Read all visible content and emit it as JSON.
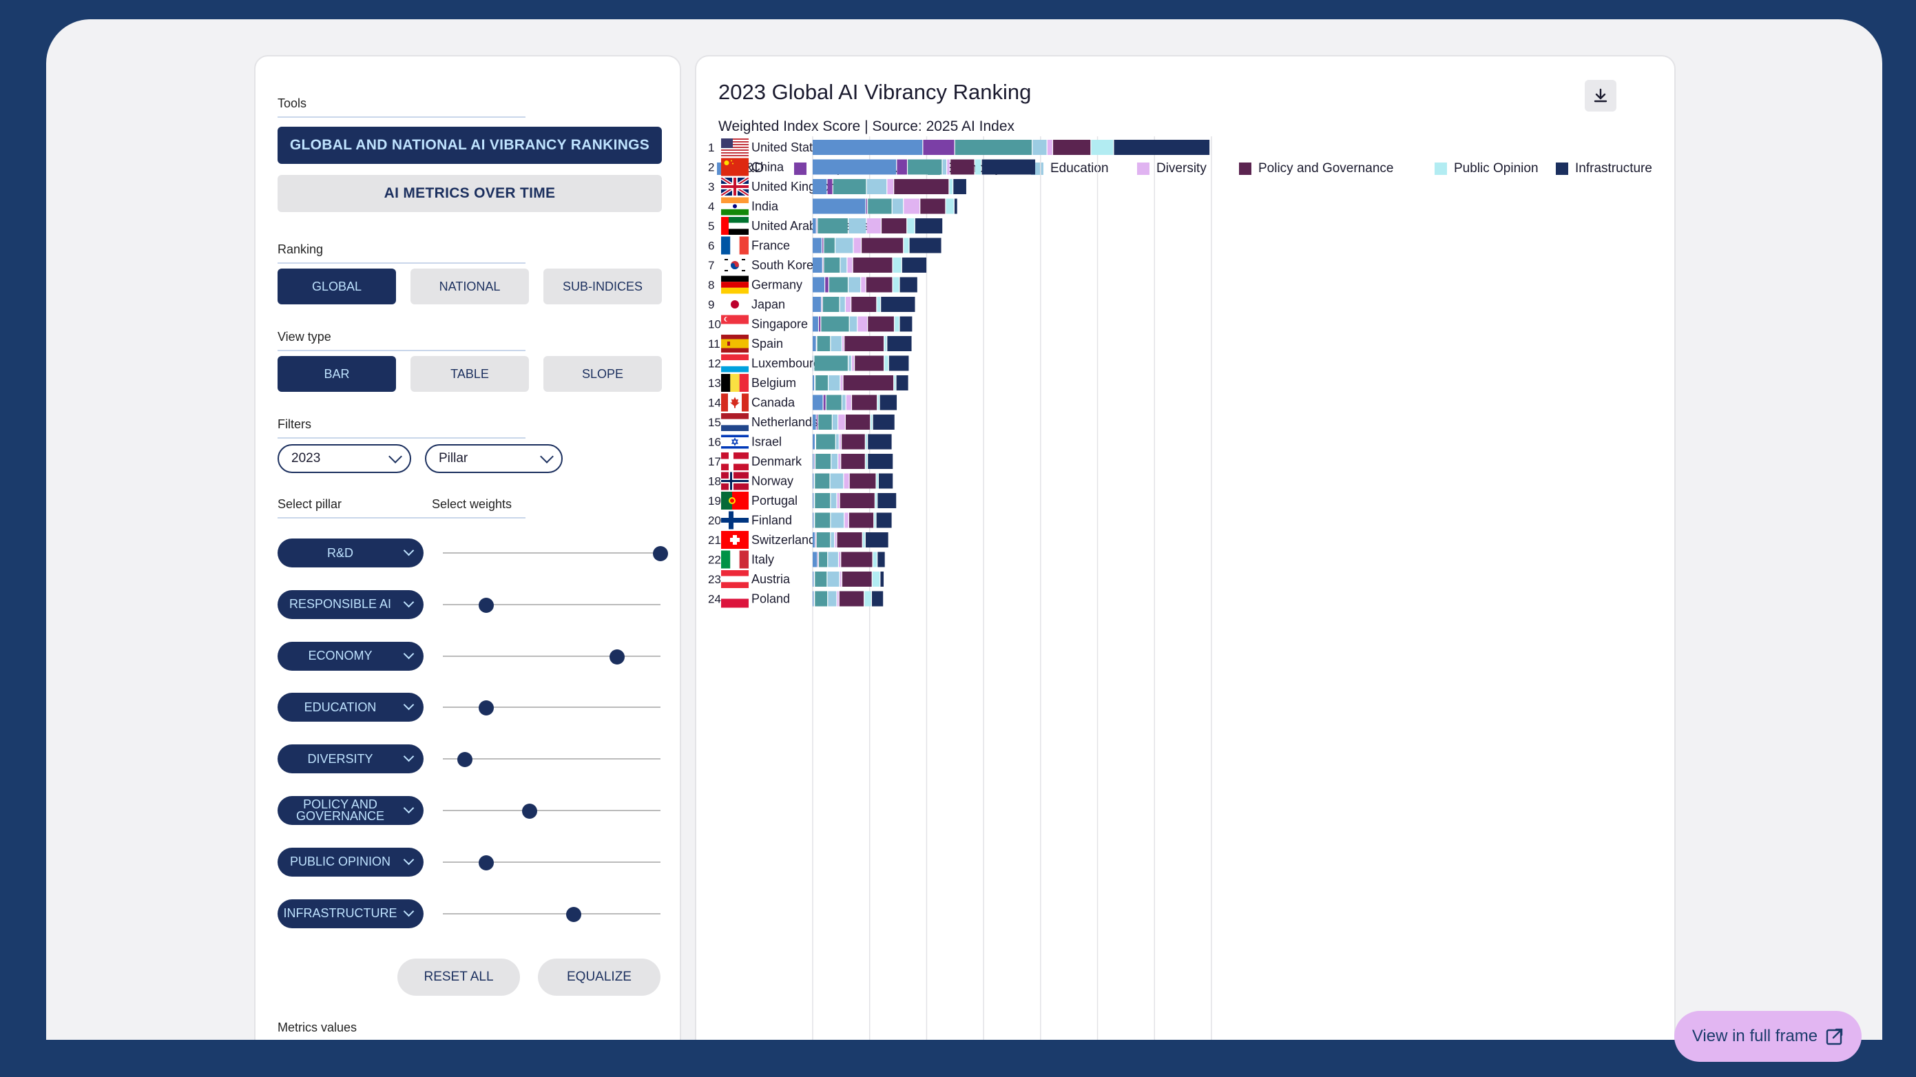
{
  "panel": {
    "tools_label": "Tools",
    "tools": [
      "GLOBAL AND NATIONAL AI VIBRANCY RANKINGS",
      "AI METRICS OVER TIME"
    ],
    "ranking_label": "Ranking",
    "ranking": [
      "GLOBAL",
      "NATIONAL",
      "SUB-INDICES"
    ],
    "viewtype_label": "View type",
    "viewtype": [
      "BAR",
      "TABLE",
      "SLOPE"
    ],
    "filters_label": "Filters",
    "year": "2023",
    "mode": "Pillar",
    "select_pillar_label": "Select pillar",
    "select_weights_label": "Select weights",
    "pillars": [
      {
        "label": "R&D",
        "weight": 1.0
      },
      {
        "label": "RESPONSIBLE AI",
        "weight": 0.2
      },
      {
        "label": "ECONOMY",
        "weight": 0.8
      },
      {
        "label": "EDUCATION",
        "weight": 0.2
      },
      {
        "label": "DIVERSITY",
        "weight": 0.1
      },
      {
        "label": "POLICY AND GOVERNANCE",
        "weight": 0.4
      },
      {
        "label": "PUBLIC OPINION",
        "weight": 0.2
      },
      {
        "label": "INFRASTRUCTURE",
        "weight": 0.6
      }
    ],
    "reset_label": "RESET ALL",
    "equalize_label": "EQUALIZE",
    "metrics_label": "Metrics values"
  },
  "full_frame_label": "View in full frame",
  "chart_data": {
    "type": "bar",
    "stacked": true,
    "orientation": "horizontal",
    "title": "2023 Global AI Vibrancy Ranking",
    "subtitle": "Weighted Index Score | Source: 2025 AI Index",
    "legend_position": "top",
    "grid": true,
    "series": [
      {
        "name": "R&D",
        "color": "#5b8fcf"
      },
      {
        "name": "Responsible AI",
        "color": "#7b3fa6"
      },
      {
        "name": "Economy",
        "color": "#4e9a9e"
      },
      {
        "name": "Education",
        "color": "#9ccce3"
      },
      {
        "name": "Diversity",
        "color": "#e0b3f1"
      },
      {
        "name": "Policy and Governance",
        "color": "#5b2450"
      },
      {
        "name": "Public Opinion",
        "color": "#b2ecf2"
      },
      {
        "name": "Infrastructure",
        "color": "#1b2f5e"
      }
    ],
    "xlim": [
      0,
      70
    ],
    "rows": [
      {
        "rank": "1",
        "country": "United States",
        "flag": "us",
        "values": [
          19.4,
          5.6,
          13.6,
          2.6,
          1.0,
          6.7,
          4.0,
          16.9
        ]
      },
      {
        "rank": "2",
        "country": "China",
        "flag": "cn",
        "values": [
          14.8,
          1.9,
          6.1,
          0.8,
          0.6,
          4.3,
          1.2,
          9.5
        ]
      },
      {
        "rank": "3",
        "country": "United Kingdom",
        "flag": "uk",
        "values": [
          2.6,
          1.0,
          5.9,
          3.6,
          1.2,
          9.7,
          0.7,
          2.4
        ]
      },
      {
        "rank": "4",
        "country": "India",
        "flag": "in",
        "values": [
          9.4,
          0.3,
          4.3,
          2.0,
          2.9,
          4.5,
          1.5,
          0.6
        ]
      },
      {
        "rank": "5",
        "country": "United Arab Emirates",
        "flag": "ae",
        "values": [
          0.7,
          0.2,
          5.4,
          3.2,
          2.6,
          4.5,
          1.4,
          4.9
        ]
      },
      {
        "rank": "6",
        "country": "France",
        "flag": "fr",
        "values": [
          1.7,
          0.3,
          2.0,
          3.2,
          1.4,
          7.4,
          1.0,
          5.7
        ]
      },
      {
        "rank": "7",
        "country": "South Korea",
        "flag": "kr",
        "values": [
          1.8,
          0.2,
          2.9,
          1.2,
          1.0,
          7.0,
          1.6,
          4.4
        ]
      },
      {
        "rank": "8",
        "country": "Germany",
        "flag": "de",
        "values": [
          2.2,
          0.7,
          3.4,
          2.2,
          0.9,
          4.7,
          1.2,
          3.2
        ]
      },
      {
        "rank": "9",
        "country": "Japan",
        "flag": "jp",
        "values": [
          1.6,
          0.2,
          3.0,
          1.0,
          1.0,
          4.5,
          0.7,
          6.1
        ]
      },
      {
        "rank": "10",
        "country": "Singapore",
        "flag": "sg",
        "values": [
          1.1,
          0.4,
          5.0,
          1.4,
          1.8,
          4.7,
          0.9,
          2.3
        ]
      },
      {
        "rank": "11",
        "country": "Spain",
        "flag": "es",
        "values": [
          0.7,
          0.1,
          2.4,
          2.0,
          0.4,
          7.0,
          0.5,
          4.4
        ]
      },
      {
        "rank": "12",
        "country": "Luxembourg",
        "flag": "lu",
        "values": [
          0.2,
          0.1,
          6.0,
          0.6,
          0.5,
          5.2,
          0.8,
          3.6
        ]
      },
      {
        "rank": "13",
        "country": "Belgium",
        "flag": "be",
        "values": [
          0.4,
          0.1,
          2.3,
          2.1,
          0.5,
          8.9,
          0.4,
          2.2
        ]
      },
      {
        "rank": "14",
        "country": "Canada",
        "flag": "ca",
        "values": [
          1.9,
          0.5,
          2.8,
          0.7,
          1.0,
          4.5,
          0.4,
          3.1
        ]
      },
      {
        "rank": "15",
        "country": "Netherlands",
        "flag": "nl",
        "values": [
          0.7,
          0.3,
          2.5,
          1.0,
          1.3,
          4.4,
          0.4,
          3.9
        ]
      },
      {
        "rank": "16",
        "country": "Israel",
        "flag": "il",
        "values": [
          0.5,
          0.1,
          3.5,
          0.6,
          0.4,
          4.2,
          0.4,
          4.3
        ]
      },
      {
        "rank": "17",
        "country": "Denmark",
        "flag": "dk",
        "values": [
          0.3,
          0.2,
          2.8,
          1.2,
          0.5,
          4.3,
          0.4,
          4.5
        ]
      },
      {
        "rank": "18",
        "country": "Norway",
        "flag": "no",
        "values": [
          0.3,
          0.1,
          2.7,
          2.4,
          1.0,
          4.7,
          0.4,
          2.6
        ]
      },
      {
        "rank": "19",
        "country": "Portugal",
        "flag": "pt",
        "values": [
          0.3,
          0.1,
          2.8,
          1.1,
          0.5,
          6.2,
          0.4,
          3.4
        ]
      },
      {
        "rank": "20",
        "country": "Finland",
        "flag": "fi",
        "values": [
          0.3,
          0.1,
          2.8,
          2.4,
          0.8,
          4.4,
          0.4,
          2.8
        ]
      },
      {
        "rank": "21",
        "country": "Switzerland",
        "flag": "ch",
        "values": [
          0.5,
          0.2,
          2.5,
          0.7,
          0.4,
          4.5,
          0.5,
          4.1
        ]
      },
      {
        "rank": "22",
        "country": "Italy",
        "flag": "it",
        "values": [
          0.9,
          0.2,
          1.6,
          1.9,
          0.4,
          5.6,
          0.8,
          1.4
        ]
      },
      {
        "rank": "23",
        "country": "Austria",
        "flag": "at",
        "values": [
          0.3,
          0.1,
          2.2,
          2.2,
          0.4,
          5.3,
          1.4,
          0.7
        ]
      },
      {
        "rank": "24",
        "country": "Poland",
        "flag": "pl",
        "values": [
          0.3,
          0.1,
          2.3,
          1.6,
          0.4,
          4.4,
          1.3,
          2.1
        ]
      }
    ]
  }
}
